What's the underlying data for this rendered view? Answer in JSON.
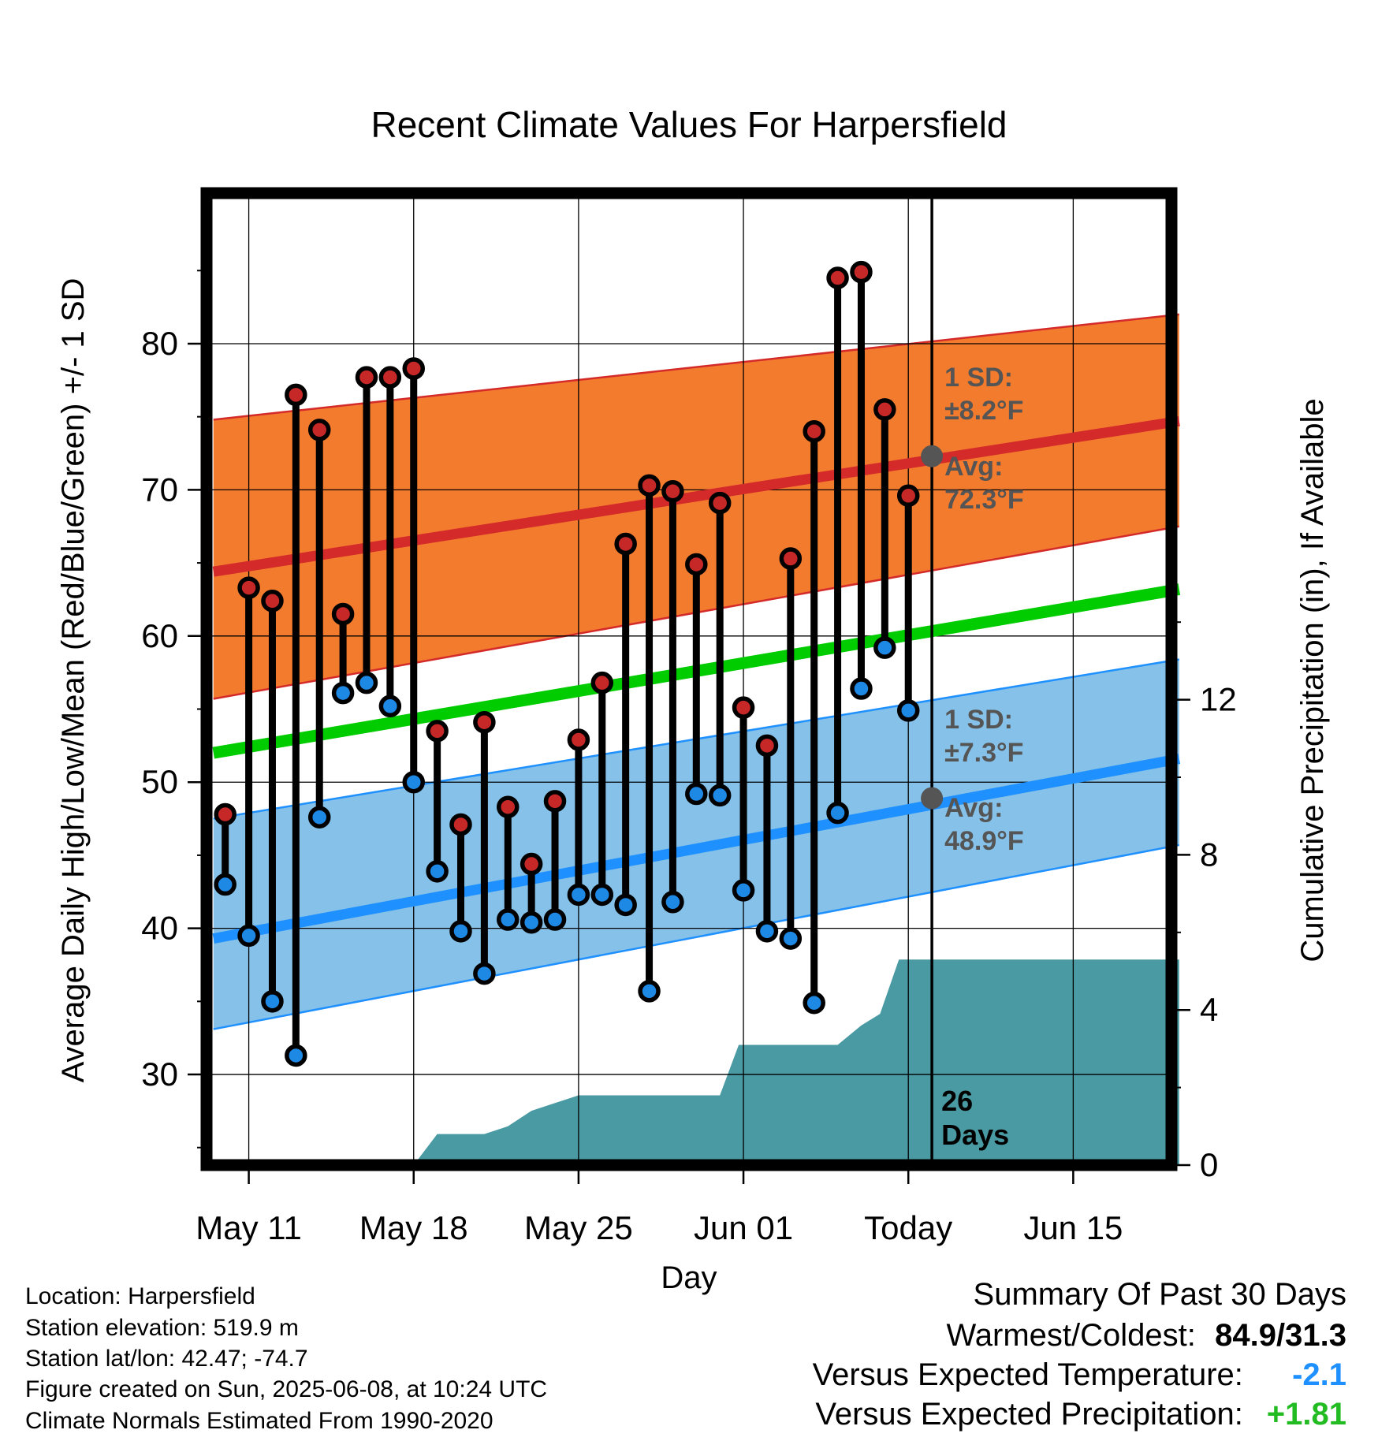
{
  "chart_data": {
    "type": "line",
    "title": "Recent Climate Values For Harpersfield",
    "xlabel": "Day",
    "ylabel": "Average Daily High/Low/Mean (Red/Blue/Green) +/- 1 SD",
    "y2label": "Cumulative Precipitation (in), If Available",
    "x_ticks": [
      "May 11",
      "May 18",
      "May 25",
      "Jun 01",
      "Today",
      "Jun 15"
    ],
    "y_ticks": [
      30,
      40,
      50,
      60,
      70,
      80
    ],
    "y2_ticks": [
      0,
      4,
      8,
      12
    ],
    "ylim": [
      23.8,
      90.3
    ],
    "y2lim": [
      0,
      25
    ],
    "colors": {
      "high_band": "#f37b2e",
      "high_line": "#d42a2a",
      "low_band": "#85c1e8",
      "low_line": "#1e90ff",
      "mean_line": "#00cc00",
      "precip": "#4a9aa3",
      "high_point": "#c62828",
      "low_point": "#1e88e5"
    },
    "daily": [
      {
        "day": 0,
        "high": 47.8,
        "low": 43.0
      },
      {
        "day": 1,
        "high": 63.3,
        "low": 39.5
      },
      {
        "day": 2,
        "high": 62.4,
        "low": 35.0
      },
      {
        "day": 3,
        "high": 76.5,
        "low": 31.3
      },
      {
        "day": 4,
        "high": 74.1,
        "low": 47.6
      },
      {
        "day": 5,
        "high": 61.5,
        "low": 56.1
      },
      {
        "day": 6,
        "high": 77.7,
        "low": 56.8
      },
      {
        "day": 7,
        "high": 77.7,
        "low": 55.2
      },
      {
        "day": 8,
        "high": 78.3,
        "low": 50.0
      },
      {
        "day": 9,
        "high": 53.5,
        "low": 43.9
      },
      {
        "day": 10,
        "high": 47.1,
        "low": 39.8
      },
      {
        "day": 11,
        "high": 54.1,
        "low": 36.9
      },
      {
        "day": 12,
        "high": 48.3,
        "low": 40.6
      },
      {
        "day": 13,
        "high": 44.4,
        "low": 40.4
      },
      {
        "day": 14,
        "high": 48.7,
        "low": 40.6
      },
      {
        "day": 15,
        "high": 52.9,
        "low": 42.3
      },
      {
        "day": 16,
        "high": 56.8,
        "low": 42.3
      },
      {
        "day": 17,
        "high": 66.3,
        "low": 41.6
      },
      {
        "day": 18,
        "high": 70.3,
        "low": 35.7
      },
      {
        "day": 19,
        "high": 69.9,
        "low": 41.8
      },
      {
        "day": 20,
        "high": 64.9,
        "low": 49.2
      },
      {
        "day": 21,
        "high": 69.1,
        "low": 49.1
      },
      {
        "day": 22,
        "high": 55.1,
        "low": 42.6
      },
      {
        "day": 23,
        "high": 52.5,
        "low": 39.8
      },
      {
        "day": 24,
        "high": 65.3,
        "low": 39.3
      },
      {
        "day": 25,
        "high": 74.0,
        "low": 34.9
      },
      {
        "day": 26,
        "high": 84.5,
        "low": 47.9
      },
      {
        "day": 27,
        "high": 84.9,
        "low": 56.4
      },
      {
        "day": 28,
        "high": 75.5,
        "low": 59.2
      },
      {
        "day": 29,
        "high": 69.6,
        "low": 54.9
      }
    ],
    "normals": {
      "x_range": [
        -0.5,
        40.5
      ],
      "high_avg": [
        64.4,
        74.7
      ],
      "high_sd_upper": [
        74.8,
        82.0
      ],
      "high_sd_lower": [
        55.7,
        67.5
      ],
      "low_avg": [
        39.3,
        51.6
      ],
      "low_sd_upper": [
        47.5,
        58.4
      ],
      "low_sd_lower": [
        33.1,
        45.7
      ],
      "mean_avg": [
        52.0,
        63.2
      ]
    },
    "precip": [
      {
        "day": -0.5,
        "value": 0.0
      },
      {
        "day": 8.0,
        "value": 0.0
      },
      {
        "day": 9.0,
        "value": 0.8
      },
      {
        "day": 11.0,
        "value": 0.8
      },
      {
        "day": 12.0,
        "value": 1.0
      },
      {
        "day": 13.0,
        "value": 1.4
      },
      {
        "day": 14.0,
        "value": 1.6
      },
      {
        "day": 15.0,
        "value": 1.8
      },
      {
        "day": 17.0,
        "value": 1.8
      },
      {
        "day": 20.0,
        "value": 1.8
      },
      {
        "day": 21.0,
        "value": 1.8
      },
      {
        "day": 21.8,
        "value": 3.1
      },
      {
        "day": 26.0,
        "value": 3.1
      },
      {
        "day": 27.0,
        "value": 3.6
      },
      {
        "day": 27.8,
        "value": 3.9
      },
      {
        "day": 28.6,
        "value": 5.3
      },
      {
        "day": 40.5,
        "value": 5.3
      }
    ],
    "today_day": 30,
    "annotations": {
      "high_sd_label": "1 SD:",
      "high_sd_value": "±8.2°F",
      "high_avg_label": "Avg:",
      "high_avg_value": "72.3°F",
      "high_avg_marker": 72.3,
      "low_sd_label": "1 SD:",
      "low_sd_value": "±7.3°F",
      "low_avg_label": "Avg:",
      "low_avg_value": "48.9°F",
      "low_avg_marker": 48.9,
      "days_count": "26",
      "days_label": "Days"
    }
  },
  "footer": {
    "location": "Location: Harpersfield",
    "elevation": "Station elevation: 519.9 m",
    "latlon": "Station lat/lon: 42.47; -74.7",
    "created": "Figure created on Sun, 2025-06-08, at 10:24 UTC",
    "normals": "Climate Normals Estimated From 1990-2020"
  },
  "summary": {
    "title": "Summary Of Past 30 Days",
    "warm_cold_label": "Warmest/Coldest:",
    "warm_cold_value": "84.9/31.3",
    "temp_label": "Versus Expected Temperature:",
    "temp_value": "-2.1",
    "temp_color": "#1e90ff",
    "precip_label": "Versus Expected Precipitation:",
    "precip_value": "+1.81",
    "precip_color": "#22bb22"
  }
}
